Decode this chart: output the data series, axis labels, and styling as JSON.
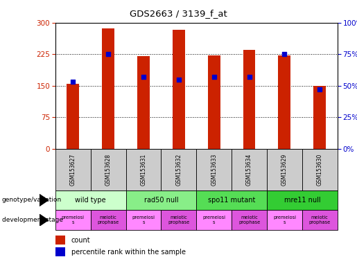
{
  "title": "GDS2663 / 3139_f_at",
  "samples": [
    "GSM153627",
    "GSM153628",
    "GSM153631",
    "GSM153632",
    "GSM153633",
    "GSM153634",
    "GSM153629",
    "GSM153630"
  ],
  "counts": [
    155,
    287,
    220,
    283,
    222,
    235,
    222,
    150
  ],
  "percentile_ranks": [
    53,
    75,
    57,
    55,
    57,
    57,
    75,
    47
  ],
  "ylim_left": [
    0,
    300
  ],
  "ylim_right": [
    0,
    100
  ],
  "yticks_left": [
    0,
    75,
    150,
    225,
    300
  ],
  "yticks_right": [
    0,
    25,
    50,
    75,
    100
  ],
  "bar_color": "#cc2200",
  "dot_color": "#0000cc",
  "genotype_groups": [
    {
      "label": "wild type",
      "start": 0,
      "end": 2,
      "color": "#ccffcc"
    },
    {
      "label": "rad50 null",
      "start": 2,
      "end": 4,
      "color": "#88ee88"
    },
    {
      "label": "spo11 mutant",
      "start": 4,
      "end": 6,
      "color": "#55dd55"
    },
    {
      "label": "mre11 null",
      "start": 6,
      "end": 8,
      "color": "#33cc33"
    }
  ],
  "dev_stage_groups": [
    {
      "label": "premeiosi\ns",
      "start": 0,
      "end": 1,
      "color": "#ff88ff"
    },
    {
      "label": "meiotic\nprophase",
      "start": 1,
      "end": 2,
      "color": "#dd55dd"
    },
    {
      "label": "premeiosi\ns",
      "start": 2,
      "end": 3,
      "color": "#ff88ff"
    },
    {
      "label": "meiotic\nprophase",
      "start": 3,
      "end": 4,
      "color": "#dd55dd"
    },
    {
      "label": "premeiosi\ns",
      "start": 4,
      "end": 5,
      "color": "#ff88ff"
    },
    {
      "label": "meiotic\nprophase",
      "start": 5,
      "end": 6,
      "color": "#dd55dd"
    },
    {
      "label": "premeiosi\ns",
      "start": 6,
      "end": 7,
      "color": "#ff88ff"
    },
    {
      "label": "meiotic\nprophase",
      "start": 7,
      "end": 8,
      "color": "#dd55dd"
    }
  ],
  "genotype_label": "genotype/variation",
  "dev_stage_label": "development stage",
  "legend_count_label": "count",
  "legend_pct_label": "percentile rank within the sample",
  "tick_color_left": "#cc2200",
  "tick_color_right": "#0000cc",
  "sample_bg_color": "#cccccc",
  "bar_width": 0.35
}
